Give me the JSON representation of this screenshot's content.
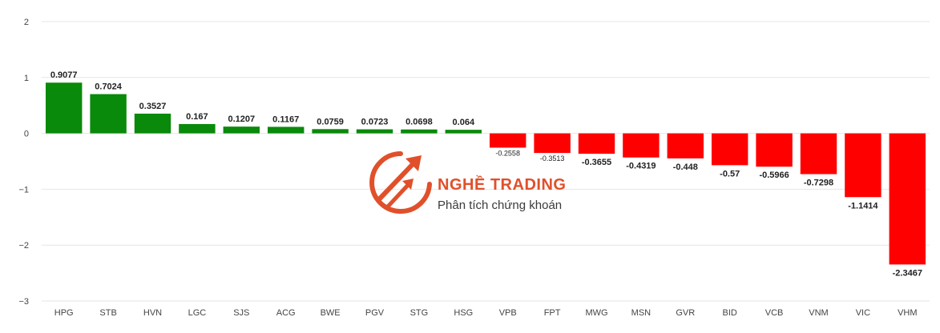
{
  "chart_data": {
    "type": "bar",
    "categories": [
      "HPG",
      "STB",
      "HVN",
      "LGC",
      "SJS",
      "ACG",
      "BWE",
      "PGV",
      "STG",
      "HSG",
      "VPB",
      "FPT",
      "MWG",
      "MSN",
      "GVR",
      "BID",
      "VCB",
      "VNM",
      "VIC",
      "VHM"
    ],
    "values": [
      0.9077,
      0.7024,
      0.3527,
      0.167,
      0.1207,
      0.1167,
      0.0759,
      0.0723,
      0.0698,
      0.064,
      -0.2558,
      -0.3513,
      -0.3655,
      -0.4319,
      -0.448,
      -0.57,
      -0.5966,
      -0.7298,
      -1.1414,
      -2.3467
    ],
    "value_labels": [
      "0.9077",
      "0.7024",
      "0.3527",
      "0.167",
      "0.1207",
      "0.1167",
      "0.0759",
      "0.0723",
      "0.0698",
      "0.064",
      "-0.2558",
      "-0.3513",
      "-0.3655",
      "-0.4319",
      "-0.448",
      "-0.57",
      "-0.5966",
      "-0.7298",
      "-1.1414",
      "-2.3467"
    ],
    "yticks": [
      "2",
      "1",
      "0",
      "−1",
      "−2",
      "−3"
    ],
    "ylim": [
      -3,
      2
    ],
    "grid": true,
    "colors": {
      "positive": "#0a8a0a",
      "negative": "#ff0000"
    },
    "title": "",
    "xlabel": "",
    "ylabel": ""
  },
  "watermark": {
    "title": "NGHỀ TRADING",
    "subtitle": "Phân tích chứng khoán",
    "logo_icon": "trend-arrows-logo-icon",
    "color": "#e0502a"
  }
}
